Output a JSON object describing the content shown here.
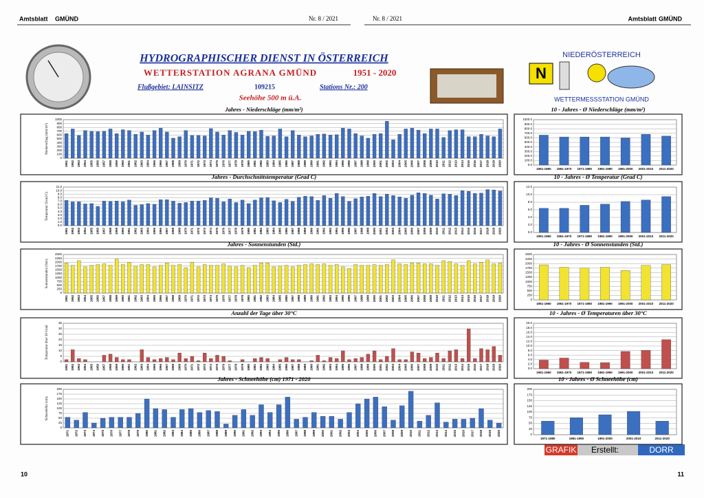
{
  "header": {
    "left_paper": "Amtsblatt",
    "left_town": "GMÜND",
    "left_issue": "Nr. 8 / 2021",
    "right_issue": "Nr. 8 / 2021",
    "right_paper": "Amtsblatt",
    "right_town": "GMÜND",
    "page_left": "10",
    "page_right": "11"
  },
  "title": {
    "main": "HYDROGRAPHISCHER DIENST IN ÖSTERREICH",
    "station": "WETTERSTATION AGRANA GMÜND",
    "period": "1951 - 2020",
    "river": "Flußgebiet: LAINSITZ",
    "code": "109215",
    "station_nr": "Stations Nr.: 200",
    "altitude": "Seehöhe 500 m ü.A."
  },
  "logo": {
    "region": "NIEDERÖSTERREICH",
    "station": "WETTERMESSSTATION GMÜND"
  },
  "credit": {
    "a": "GRAFIK",
    "b": "Erstellt:",
    "c": "DORR"
  },
  "chart_data": [
    {
      "type": "bar",
      "title": "Jahres - Niederschläge (mm/m²)",
      "y_label": "Niederschlag (mm/m²)",
      "color": "#3b6fc0",
      "grid": true,
      "ylim": [
        0,
        1000
      ],
      "yticks": [
        0,
        100,
        200,
        300,
        400,
        500,
        600,
        700,
        800,
        900,
        1000
      ],
      "categories": [
        "1951",
        "1952",
        "1953",
        "1954",
        "1955",
        "1956",
        "1957",
        "1958",
        "1959",
        "1960",
        "1961",
        "1962",
        "1963",
        "1964",
        "1965",
        "1966",
        "1967",
        "1968",
        "1969",
        "1970",
        "1971",
        "1972",
        "1973",
        "1974",
        "1975",
        "1976",
        "1977",
        "1978",
        "1979",
        "1980",
        "1981",
        "1982",
        "1983",
        "1984",
        "1985",
        "1986",
        "1987",
        "1988",
        "1989",
        "1990",
        "1991",
        "1992",
        "1993",
        "1994",
        "1995",
        "1996",
        "1997",
        "1998",
        "1999",
        "2000",
        "2001",
        "2002",
        "2003",
        "2004",
        "2005",
        "2006",
        "2007",
        "2008",
        "2009",
        "2010",
        "2011",
        "2012",
        "2013",
        "2014",
        "2015",
        "2016",
        "2017",
        "2018",
        "2019",
        "2020"
      ],
      "values": [
        640,
        760,
        590,
        720,
        700,
        690,
        700,
        760,
        640,
        740,
        720,
        620,
        680,
        600,
        720,
        780,
        680,
        520,
        560,
        720,
        590,
        590,
        580,
        770,
        680,
        600,
        720,
        670,
        600,
        700,
        690,
        730,
        570,
        580,
        760,
        560,
        720,
        600,
        560,
        580,
        620,
        630,
        600,
        610,
        780,
        760,
        640,
        580,
        520,
        620,
        640,
        960,
        480,
        620,
        760,
        780,
        730,
        640,
        760,
        760,
        540,
        720,
        740,
        740,
        560,
        560,
        620,
        580,
        560,
        760
      ]
    },
    {
      "type": "bar",
      "title": "Jahres - Durchschnittstemperatur (Grad C)",
      "y_label": "Temperatur (Grad C)",
      "color": "#3b6fc0",
      "grid": true,
      "ylim": [
        0,
        11
      ],
      "yticks": [
        {
          "value": 0,
          "label": "0.0"
        },
        {
          "value": 1,
          "label": "1.0"
        },
        {
          "value": 2,
          "label": "2.0"
        },
        {
          "value": 3,
          "label": "3.0"
        },
        {
          "value": 4,
          "label": "4.0"
        },
        {
          "value": 5,
          "label": "5.0"
        },
        {
          "value": 6,
          "label": "6.0"
        },
        {
          "value": 7,
          "label": "7.0"
        },
        {
          "value": 8,
          "label": "8.0"
        },
        {
          "value": 9,
          "label": "9.0"
        },
        {
          "value": 10,
          "label": "10.0"
        },
        {
          "value": 11,
          "label": "11.0"
        }
      ],
      "categories": [
        "1951",
        "1952",
        "1953",
        "1954",
        "1955",
        "1956",
        "1957",
        "1958",
        "1959",
        "1960",
        "1961",
        "1962",
        "1963",
        "1964",
        "1965",
        "1966",
        "1967",
        "1968",
        "1969",
        "1970",
        "1971",
        "1972",
        "1973",
        "1974",
        "1975",
        "1976",
        "1977",
        "1978",
        "1979",
        "1980",
        "1981",
        "1982",
        "1983",
        "1984",
        "1985",
        "1986",
        "1987",
        "1988",
        "1989",
        "1990",
        "1991",
        "1992",
        "1993",
        "1994",
        "1995",
        "1996",
        "1997",
        "1998",
        "1999",
        "2000",
        "2001",
        "2002",
        "2003",
        "2004",
        "2005",
        "2006",
        "2007",
        "2008",
        "2009",
        "2010",
        "2011",
        "2012",
        "2013",
        "2014",
        "2015",
        "2016",
        "2017",
        "2018",
        "2019",
        "2020"
      ],
      "values": [
        7.2,
        6.8,
        6.8,
        6.2,
        6.3,
        5.5,
        7.0,
        6.9,
        7.0,
        6.8,
        7.3,
        5.8,
        6.0,
        6.3,
        6.1,
        7.4,
        7.4,
        7.0,
        6.4,
        6.6,
        7.0,
        7.0,
        7.2,
        7.9,
        7.8,
        6.8,
        7.6,
        6.6,
        7.3,
        6.3,
        7.3,
        7.9,
        8.0,
        7.1,
        6.6,
        7.5,
        6.9,
        8.1,
        8.4,
        8.3,
        7.2,
        8.6,
        7.8,
        9.2,
        8.3,
        6.9,
        7.7,
        8.2,
        8.4,
        9.2,
        8.3,
        9.0,
        8.6,
        8.2,
        7.8,
        8.7,
        9.4,
        9.2,
        8.7,
        7.6,
        9.1,
        9.0,
        8.6,
        10.0,
        9.8,
        9.2,
        9.3,
        10.3,
        10.2,
        9.9
      ]
    },
    {
      "type": "bar",
      "title": "Jahres - Sonnenstunden (Std.)",
      "y_label": "Sonnenstunden (Std.)",
      "color": "#f2e333",
      "grid": true,
      "ylim": [
        0,
        2500
      ],
      "yticks": [
        0,
        250,
        500,
        750,
        1000,
        1250,
        1500,
        1750,
        2000,
        2250,
        2500
      ],
      "categories": [
        "1951",
        "1952",
        "1953",
        "1954",
        "1955",
        "1956",
        "1957",
        "1958",
        "1959",
        "1960",
        "1961",
        "1962",
        "1963",
        "1964",
        "1965",
        "1966",
        "1967",
        "1968",
        "1969",
        "1970",
        "1971",
        "1972",
        "1973",
        "1974",
        "1975",
        "1976",
        "1977",
        "1978",
        "1979",
        "1980",
        "1981",
        "1982",
        "1983",
        "1984",
        "1985",
        "1986",
        "1987",
        "1988",
        "1989",
        "1990",
        "1991",
        "1992",
        "1993",
        "1994",
        "1995",
        "1996",
        "1997",
        "1998",
        "1999",
        "2000",
        "2001",
        "2002",
        "2003",
        "2004",
        "2005",
        "2006",
        "2007",
        "2008",
        "2009",
        "2010",
        "2011",
        "2012",
        "2013",
        "2014",
        "2015",
        "2016",
        "2017",
        "2018",
        "2019",
        "2020"
      ],
      "values": [
        1950,
        1800,
        2100,
        1700,
        1800,
        1850,
        1900,
        1800,
        2200,
        1850,
        2000,
        1750,
        1850,
        1850,
        1700,
        1800,
        1950,
        1800,
        1850,
        1650,
        2000,
        1700,
        1850,
        1800,
        1800,
        1900,
        1750,
        1700,
        1800,
        1650,
        1800,
        1950,
        1950,
        1700,
        1750,
        1800,
        1700,
        1800,
        1850,
        1900,
        1850,
        1900,
        1800,
        1850,
        1700,
        1600,
        1850,
        1800,
        1800,
        1850,
        1800,
        1850,
        2150,
        1900,
        1850,
        1950,
        1950,
        1900,
        1900,
        1800,
        2100,
        2050,
        1900,
        1800,
        2100,
        1900,
        2000,
        2150,
        1900,
        1950
      ]
    },
    {
      "type": "bar",
      "title": "Anzahl der Tage über 30°C",
      "y_label": "Temperatur über 30 Grad",
      "color": "#c0504d",
      "grid": true,
      "ylim": [
        0,
        35
      ],
      "yticks": [
        0,
        5,
        10,
        15,
        20,
        25,
        30,
        35
      ],
      "categories": [
        "1951",
        "1952",
        "1953",
        "1954",
        "1955",
        "1956",
        "1957",
        "1958",
        "1959",
        "1960",
        "1961",
        "1962",
        "1963",
        "1964",
        "1965",
        "1966",
        "1967",
        "1968",
        "1969",
        "1970",
        "1971",
        "1972",
        "1973",
        "1974",
        "1975",
        "1976",
        "1977",
        "1978",
        "1979",
        "1980",
        "1981",
        "1982",
        "1983",
        "1984",
        "1985",
        "1986",
        "1987",
        "1988",
        "1989",
        "1990",
        "1991",
        "1992",
        "1993",
        "1994",
        "1995",
        "1996",
        "1997",
        "1998",
        "1999",
        "2000",
        "2001",
        "2002",
        "2003",
        "2004",
        "2005",
        "2006",
        "2007",
        "2008",
        "2009",
        "2010",
        "2011",
        "2012",
        "2013",
        "2014",
        "2015",
        "2016",
        "2017",
        "2018",
        "2019",
        "2020"
      ],
      "values": [
        2,
        11,
        3,
        2,
        0,
        0,
        6,
        7,
        4,
        2,
        2,
        0,
        11,
        4,
        2,
        3,
        4,
        2,
        8,
        3,
        5,
        1,
        8,
        3,
        6,
        5,
        1,
        0,
        2,
        0,
        3,
        4,
        3,
        0,
        2,
        4,
        2,
        2,
        0,
        1,
        6,
        1,
        4,
        3,
        10,
        2,
        3,
        4,
        7,
        10,
        2,
        5,
        12,
        2,
        2,
        9,
        8,
        3,
        4,
        8,
        3,
        10,
        11,
        3,
        30,
        3,
        12,
        11,
        14,
        6
      ]
    },
    {
      "type": "bar",
      "title": "Jahres - Schneehöhe (cm)  1971 - 2020",
      "y_label": "Schneehöhe (cm)",
      "color": "#3b6fc0",
      "grid": true,
      "ylim": [
        0,
        200
      ],
      "yticks": [
        0,
        25,
        50,
        75,
        100,
        125,
        150,
        175,
        200
      ],
      "categories": [
        "1971",
        "1972",
        "1973",
        "1974",
        "1975",
        "1976",
        "1977",
        "1978",
        "1979",
        "1980",
        "1981",
        "1982",
        "1983",
        "1984",
        "1985",
        "1986",
        "1987",
        "1988",
        "1989",
        "1990",
        "1991",
        "1992",
        "1993",
        "1994",
        "1995",
        "1996",
        "1997",
        "1998",
        "1999",
        "2000",
        "2001",
        "2002",
        "2003",
        "2004",
        "2005",
        "2006",
        "2007",
        "2008",
        "2009",
        "2010",
        "2011",
        "2012",
        "2013",
        "2014",
        "2015",
        "2016",
        "2017",
        "2018",
        "2019",
        "2020"
      ],
      "values": [
        55,
        40,
        80,
        25,
        50,
        55,
        55,
        55,
        75,
        150,
        100,
        95,
        55,
        95,
        100,
        80,
        90,
        85,
        20,
        65,
        95,
        65,
        120,
        80,
        120,
        160,
        45,
        55,
        80,
        60,
        60,
        45,
        80,
        125,
        150,
        160,
        110,
        40,
        115,
        190,
        35,
        65,
        130,
        30,
        45,
        45,
        50,
        100,
        40,
        25
      ]
    },
    {
      "type": "bar",
      "title": "10 - Jahres - Ø Niederschläge (mm/m²)",
      "color": "#3b6fc0",
      "grid": true,
      "ylim": [
        0,
        1000
      ],
      "yticks": [
        {
          "value": 0,
          "label": "0.0"
        },
        {
          "value": 100,
          "label": "100.0"
        },
        {
          "value": 200,
          "label": "200.0"
        },
        {
          "value": 300,
          "label": "300.0"
        },
        {
          "value": 400,
          "label": "400.0"
        },
        {
          "value": 500,
          "label": "500.0"
        },
        {
          "value": 600,
          "label": "600.0"
        },
        {
          "value": 700,
          "label": "700.0"
        },
        {
          "value": 800,
          "label": "800.0"
        },
        {
          "value": 900,
          "label": "900.0"
        },
        {
          "value": 1000,
          "label": "1000.0"
        }
      ],
      "categories": [
        "1951-1960",
        "1961-1970",
        "1971-1980",
        "1981-1990",
        "1991-2000",
        "2001-2010",
        "2011-2020"
      ],
      "values": [
        660,
        620,
        620,
        620,
        600,
        680,
        640
      ]
    },
    {
      "type": "bar",
      "title": "10 - Jahres - Ø Temperatur (Grad C)",
      "color": "#3b6fc0",
      "grid": true,
      "ylim": [
        0,
        12
      ],
      "yticks": [
        {
          "value": 0,
          "label": "0.0"
        },
        {
          "value": 2,
          "label": "2.0"
        },
        {
          "value": 4,
          "label": "4.0"
        },
        {
          "value": 6,
          "label": "6.0"
        },
        {
          "value": 8,
          "label": "8.0"
        },
        {
          "value": 10,
          "label": "10.0"
        },
        {
          "value": 12,
          "label": "12.0"
        }
      ],
      "categories": [
        "1951-1960",
        "1961-1970",
        "1971-1980",
        "1981-1990",
        "1991-2000",
        "2001-2010",
        "2011-2020"
      ],
      "values": [
        6.4,
        6.4,
        7.2,
        7.5,
        8.2,
        8.6,
        9.5
      ]
    },
    {
      "type": "bar",
      "title": "10 - Jahres - Ø Sonnenstunden (Std.)",
      "color": "#f2e333",
      "grid": true,
      "ylim": [
        0,
        2500
      ],
      "yticks": [
        0,
        250,
        500,
        750,
        1000,
        1250,
        1500,
        1750,
        2000,
        2250,
        2500
      ],
      "categories": [
        "1951-1960",
        "1961-1970",
        "1971-1980",
        "1981-1990",
        "1991-2000",
        "2001-2010",
        "2011-2020"
      ],
      "values": [
        1930,
        1800,
        1760,
        1800,
        1620,
        1900,
        1940
      ]
    },
    {
      "type": "bar",
      "title": "10 - Jahres - Ø Temperaturen über 30°C",
      "color": "#c0504d",
      "grid": true,
      "ylim": [
        0,
        20
      ],
      "yticks": [
        {
          "value": 0,
          "label": "0.0"
        },
        {
          "value": 2,
          "label": "2.0"
        },
        {
          "value": 4,
          "label": "4.0"
        },
        {
          "value": 6,
          "label": "6.0"
        },
        {
          "value": 8,
          "label": "8.0"
        },
        {
          "value": 10,
          "label": "10.0"
        },
        {
          "value": 12,
          "label": "12.0"
        },
        {
          "value": 14,
          "label": "14.0"
        },
        {
          "value": 16,
          "label": "16.0"
        },
        {
          "value": 18,
          "label": "18.0"
        },
        {
          "value": 20,
          "label": "20.0"
        }
      ],
      "categories": [
        "1951-1960",
        "1961-1970",
        "1971-1980",
        "1981-1990",
        "1991-2000",
        "2001-2010",
        "2011-2020"
      ],
      "values": [
        3.8,
        4.7,
        2.8,
        2.7,
        7.6,
        8.1,
        12.8
      ]
    },
    {
      "type": "bar",
      "title": "10 - Jahres - Ø Schneehöhe (cm)",
      "color": "#3b6fc0",
      "grid": true,
      "ylim": [
        0,
        200
      ],
      "yticks": [
        0,
        25,
        50,
        75,
        100,
        125,
        150,
        175,
        200
      ],
      "categories": [
        "1971-1980",
        "1981-1990",
        "1991-2000",
        "2001-2010",
        "2011-2020"
      ],
      "values": [
        60,
        75,
        88,
        103,
        60
      ]
    }
  ]
}
